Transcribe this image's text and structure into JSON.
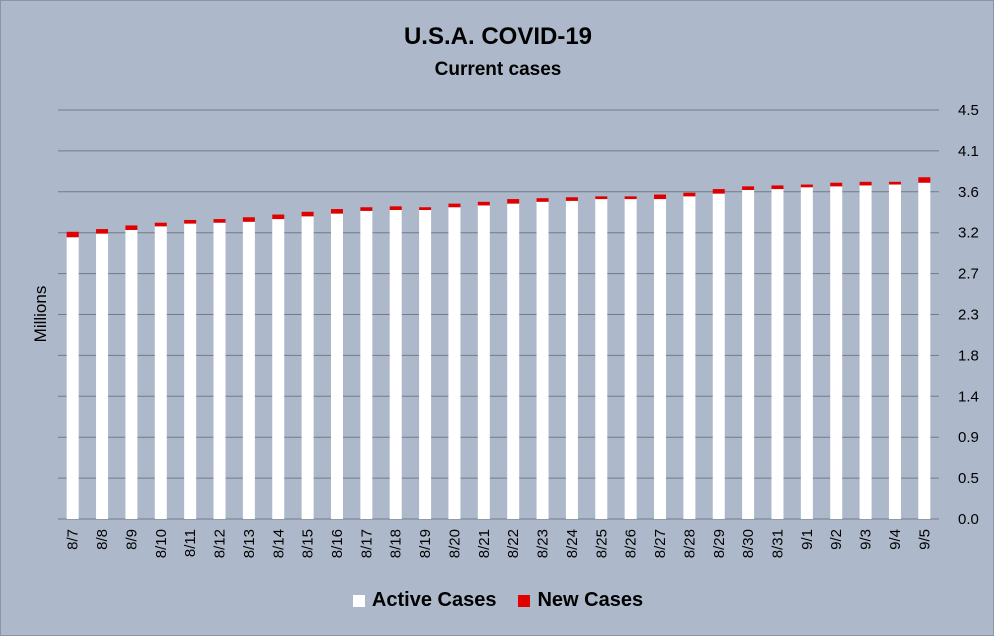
{
  "chart_data": {
    "type": "bar",
    "stacked": true,
    "title": "U.S.A. COVID-19",
    "subtitle": "Current cases",
    "ylabel": "Millions",
    "xlabel": "",
    "ylim": [
      0,
      4.5
    ],
    "y_axis_position": "right",
    "y_ticks": [
      "0.0",
      "0.5",
      "0.9",
      "1.4",
      "1.8",
      "2.3",
      "2.7",
      "3.2",
      "3.6",
      "4.1",
      "4.5"
    ],
    "grid": true,
    "legend_position": "bottom",
    "categories": [
      "8/7",
      "8/8",
      "8/9",
      "8/10",
      "8/11",
      "8/12",
      "8/13",
      "8/14",
      "8/15",
      "8/16",
      "8/17",
      "8/18",
      "8/19",
      "8/20",
      "8/21",
      "8/22",
      "8/23",
      "8/24",
      "8/25",
      "8/26",
      "8/27",
      "8/28",
      "8/29",
      "8/30",
      "8/31",
      "9/1",
      "9/2",
      "9/3",
      "9/4",
      "9/5"
    ],
    "series": [
      {
        "name": "Active Cases",
        "color": "#ffffff",
        "values": [
          3.1,
          3.14,
          3.18,
          3.22,
          3.25,
          3.26,
          3.27,
          3.3,
          3.33,
          3.36,
          3.39,
          3.4,
          3.4,
          3.43,
          3.45,
          3.47,
          3.49,
          3.5,
          3.52,
          3.52,
          3.52,
          3.55,
          3.58,
          3.62,
          3.63,
          3.65,
          3.66,
          3.67,
          3.68,
          3.7
        ]
      },
      {
        "name": "New Cases",
        "color": "#e00000",
        "values": [
          0.06,
          0.05,
          0.05,
          0.04,
          0.04,
          0.04,
          0.05,
          0.05,
          0.05,
          0.05,
          0.04,
          0.04,
          0.03,
          0.04,
          0.04,
          0.05,
          0.04,
          0.04,
          0.03,
          0.03,
          0.05,
          0.04,
          0.05,
          0.04,
          0.04,
          0.03,
          0.04,
          0.04,
          0.03,
          0.06
        ]
      }
    ]
  }
}
